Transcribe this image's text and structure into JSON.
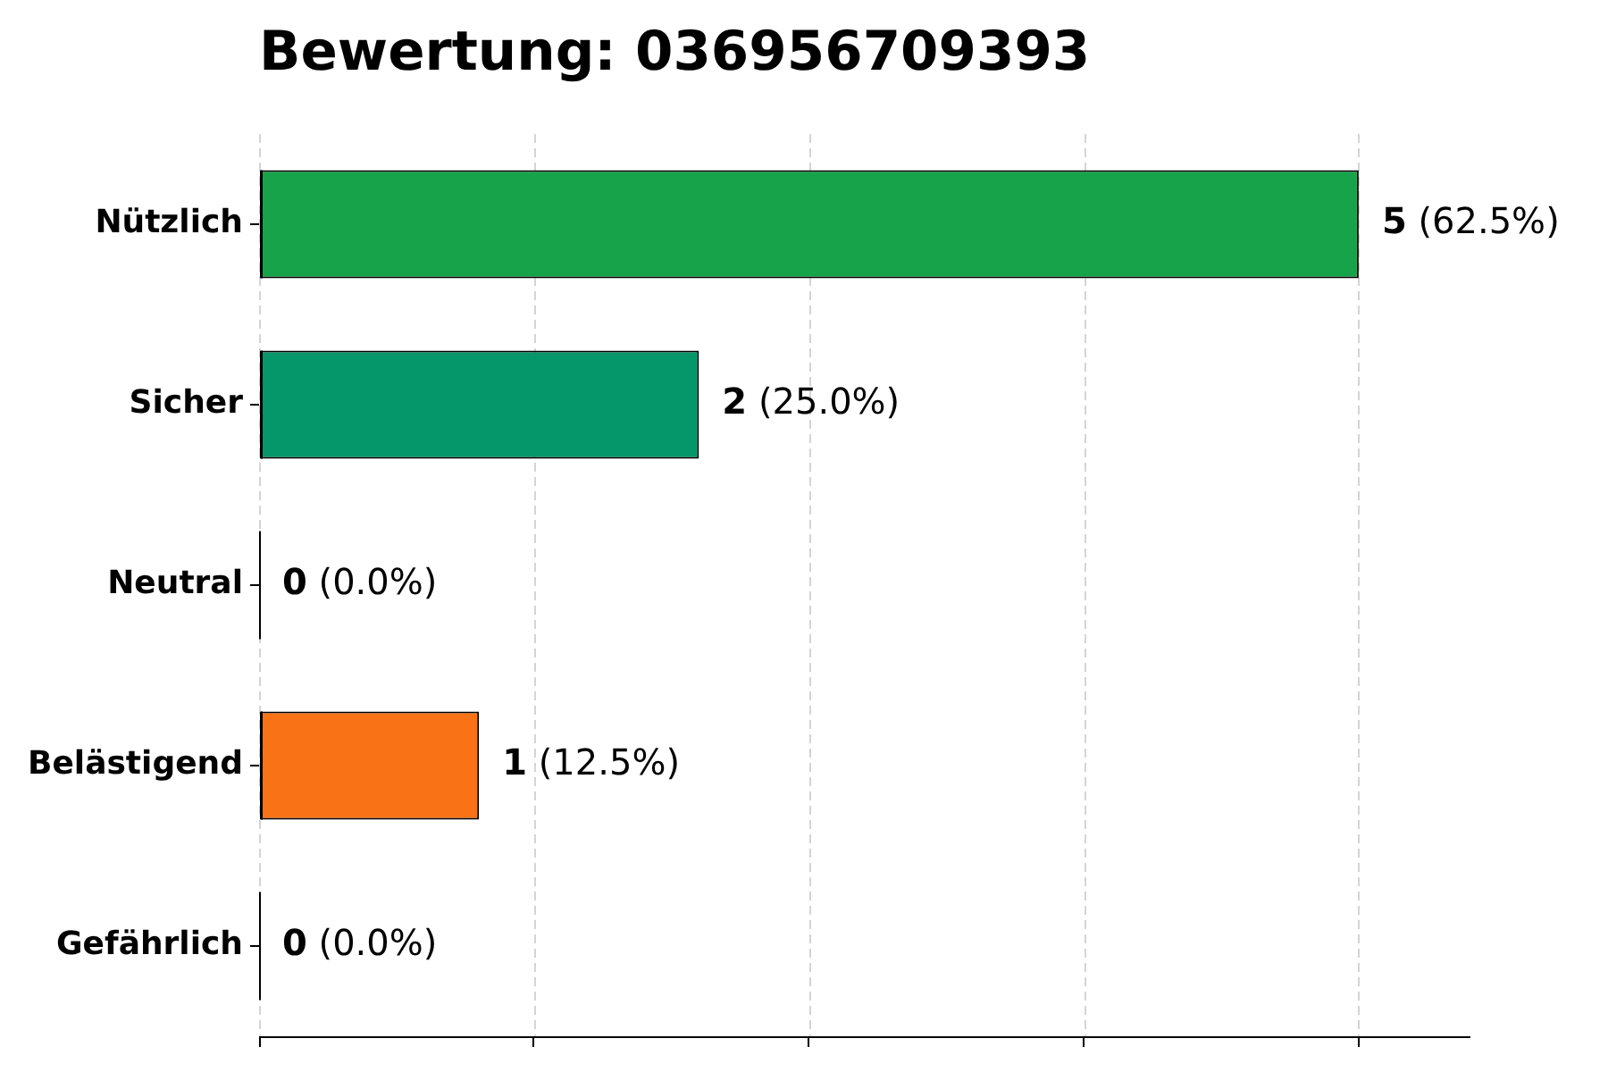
{
  "chart_data": {
    "type": "bar",
    "orientation": "horizontal",
    "title": "Bewertung: 036956709393",
    "categories": [
      "Nützlich",
      "Sicher",
      "Neutral",
      "Belästigend",
      "Gefährlich"
    ],
    "values": [
      5,
      2,
      0,
      1,
      0
    ],
    "colors": [
      "#16a34a",
      "#059669",
      "#6b7280",
      "#f97316",
      "#dc2626"
    ],
    "value_labels": [
      "5 (62.5%)",
      "2 (25.0%)",
      "0 (0.0%)",
      "1 (12.5%)",
      "0 (0.0%)"
    ],
    "xlim": [
      0,
      5.5
    ],
    "xticks": [
      {
        "value": 0,
        "label": null
      },
      {
        "value": 1.25,
        "label": null
      },
      {
        "value": 2.5,
        "label": null
      },
      {
        "value": 3.75,
        "label": null
      },
      {
        "value": 5,
        "label": null
      }
    ],
    "grid": "x",
    "tick_labels": "y"
  }
}
